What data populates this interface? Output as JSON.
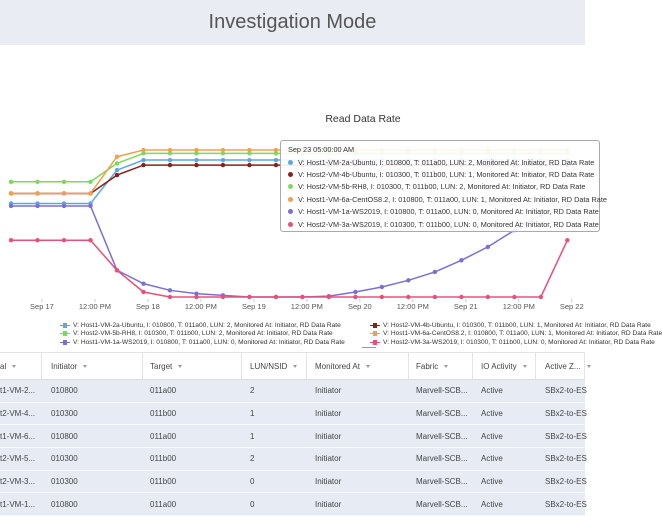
{
  "header": {
    "title": "Investigation Mode"
  },
  "chart_data": {
    "type": "line",
    "title": "Read Data Rate",
    "x": [
      -7,
      -1,
      5,
      11,
      17,
      23,
      29,
      35,
      41,
      47,
      53,
      59,
      65,
      71,
      77,
      83,
      89,
      95,
      101,
      107,
      113,
      119
    ],
    "xlim": [
      -9.5,
      123
    ],
    "xticks": [
      {
        "value": 0,
        "label": "Sep 17"
      },
      {
        "value": 12,
        "label": "12:00 PM"
      },
      {
        "value": 24,
        "label": "Sep 18"
      },
      {
        "value": 36,
        "label": "12:00 PM"
      },
      {
        "value": 48,
        "label": "Sep 19"
      },
      {
        "value": 60,
        "label": "12:00 PM"
      },
      {
        "value": 72,
        "label": "Sep 20"
      },
      {
        "value": 84,
        "label": "12:00 PM"
      },
      {
        "value": 96,
        "label": "Sep 21"
      },
      {
        "value": 108,
        "label": "12:00 PM"
      },
      {
        "value": 120,
        "label": "Sep 22"
      }
    ],
    "ylim": [
      0,
      100
    ],
    "tooltip": {
      "title": "Sep 23 05:00:00 AM"
    },
    "series": [
      {
        "name": "V: Host1-VM-2a-Ubuntu, I: 010800, T: 011a00, LUN: 2, Monitored At: Initiator, RD Data Rate",
        "color": "#5aa9e6",
        "values": [
          56,
          56,
          56,
          56,
          76,
          82,
          82,
          82,
          82,
          82,
          82,
          82,
          82,
          82,
          82,
          82,
          82,
          82,
          82,
          82,
          82,
          82
        ]
      },
      {
        "name": "V: Host2-VM-4b-Ubuntu, I: 010300, T: 011b00, LUN: 1, Monitored At: Initiator, RD Data Rate",
        "color": "#8b1e1e",
        "values": [
          62,
          62,
          62,
          62,
          73,
          79,
          79,
          79,
          79,
          79,
          79,
          79,
          79,
          79,
          79,
          79,
          79,
          79,
          79,
          79,
          79,
          79
        ]
      },
      {
        "name": "V: Host2-VM-5b-RH8, I: 010300, T: 011b00, LUN: 2, Monitored At: Initiator, RD Data Rate",
        "color": "#7ed957",
        "values": [
          69,
          69,
          69,
          69,
          80,
          86,
          86,
          86,
          86,
          86,
          86,
          86,
          86,
          86,
          86,
          86,
          86,
          86,
          86,
          86,
          86,
          86
        ]
      },
      {
        "name": "V: Host1-VM-6a-CentOS8.2, I: 010800, T: 011a00, LUN: 1, Monitored At: Initiator, RD Data Rate",
        "color": "#f0a050",
        "values": [
          62,
          62,
          62,
          62,
          84,
          88,
          88,
          88,
          88,
          88,
          88,
          88,
          88,
          88,
          88,
          88,
          88,
          88,
          88,
          88,
          88,
          88
        ]
      },
      {
        "name": "V: Host1-VM-1a-WS2019, I: 010800, T: 011a00, LUN: 0, Monitored At: Initiator, RD Data Rate",
        "color": "#7b6fd6",
        "values": [
          54.5,
          54.5,
          54.5,
          54.5,
          16,
          8,
          4,
          2,
          1,
          0,
          0,
          0,
          0.5,
          3,
          6,
          10,
          15,
          22,
          30,
          40,
          49,
          55
        ]
      },
      {
        "name": "V: Host2-VM-3a-WS2019, I: 010300, T: 011b00, LUN: 0, Monitored At: Initiator, RD Data Rate",
        "color": "#e8507a",
        "values": [
          34,
          34,
          34,
          34,
          16,
          3,
          0,
          0,
          0,
          0,
          0,
          0,
          0,
          0,
          0,
          0,
          0,
          0,
          0,
          0,
          0,
          34
        ]
      }
    ]
  },
  "table": {
    "columns": [
      "al",
      "Initiator",
      "Target",
      "LUN/NSID",
      "Monitored At",
      "Fabric",
      "IO Activity",
      "Active Z..."
    ],
    "rows": [
      [
        "t1-VM-2...",
        "010800",
        "011a00",
        2,
        "Initiator",
        "Marvell-SCB...",
        "Active",
        "SBx2-to-ES"
      ],
      [
        "t2-VM-4...",
        "010300",
        "011b00",
        1,
        "Initiator",
        "Marvell-SCB...",
        "Active",
        "SBx2-to-ES"
      ],
      [
        "t1-VM-6...",
        "010800",
        "011a00",
        1,
        "Initiator",
        "Marvell-SCB...",
        "Active",
        "SBx2-to-ES"
      ],
      [
        "t2-VM-5...",
        "010300",
        "011b00",
        2,
        "Initiator",
        "Marvell-SCB...",
        "Active",
        "SBx2-to-ES"
      ],
      [
        "t2-VM-3...",
        "010300",
        "011b00",
        0,
        "Initiator",
        "Marvell-SCB...",
        "Active",
        "SBx2-to-ES"
      ],
      [
        "t1-VM-1...",
        "010800",
        "011a00",
        0,
        "Initiator",
        "Marvell-SCB...",
        "Active",
        "SBx2-to-ES"
      ]
    ]
  }
}
